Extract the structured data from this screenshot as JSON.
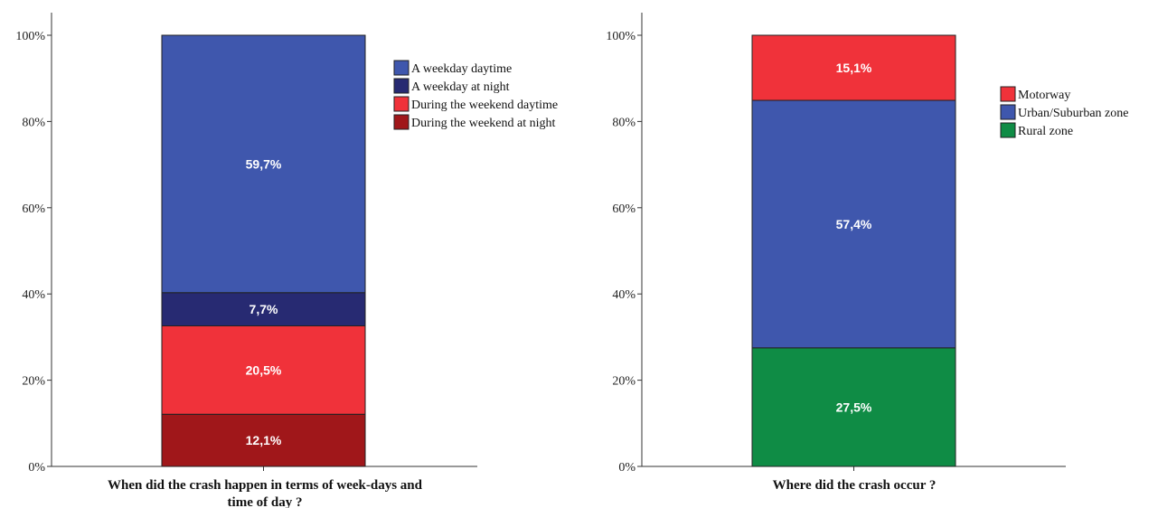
{
  "chart_data": [
    {
      "type": "bar",
      "stacked": true,
      "categories": [
        ""
      ],
      "xlabel": [
        "When did the crash happen in terms of week-days and",
        "time of day ?"
      ],
      "ylabel": "",
      "ylim": [
        0,
        100
      ],
      "yticks": [
        "0%",
        "20%",
        "40%",
        "60%",
        "80%",
        "100%"
      ],
      "legend_position": "top-right",
      "series": [
        {
          "name": "During the weekend at night",
          "values": [
            12.1
          ],
          "label": "12,1%",
          "color": "#a0171a"
        },
        {
          "name": "During the weekend daytime",
          "values": [
            20.5
          ],
          "label": "20,5%",
          "color": "#f0323a"
        },
        {
          "name": "A weekday at night",
          "values": [
            7.7
          ],
          "label": "7,7%",
          "color": "#272a72"
        },
        {
          "name": "A weekday daytime",
          "values": [
            59.7
          ],
          "label": "59,7%",
          "color": "#3f57ad"
        }
      ],
      "legend_order": [
        "A weekday daytime",
        "A weekday at night",
        "During the weekend daytime",
        "During the weekend at night"
      ]
    },
    {
      "type": "bar",
      "stacked": true,
      "categories": [
        ""
      ],
      "xlabel": [
        "Where did the crash occur ?"
      ],
      "ylabel": "",
      "ylim": [
        0,
        100
      ],
      "yticks": [
        "0%",
        "20%",
        "40%",
        "60%",
        "80%",
        "100%"
      ],
      "legend_position": "top-right",
      "series": [
        {
          "name": "Rural zone",
          "values": [
            27.5
          ],
          "label": "27,5%",
          "color": "#0f8c45"
        },
        {
          "name": "Urban/Suburban zone",
          "values": [
            57.4
          ],
          "label": "57,4%",
          "color": "#3f57ad"
        },
        {
          "name": "Motorway",
          "values": [
            15.1
          ],
          "label": "15,1%",
          "color": "#f0323a"
        }
      ],
      "legend_order": [
        "Motorway",
        "Urban/Suburban zone",
        "Rural zone"
      ]
    }
  ]
}
